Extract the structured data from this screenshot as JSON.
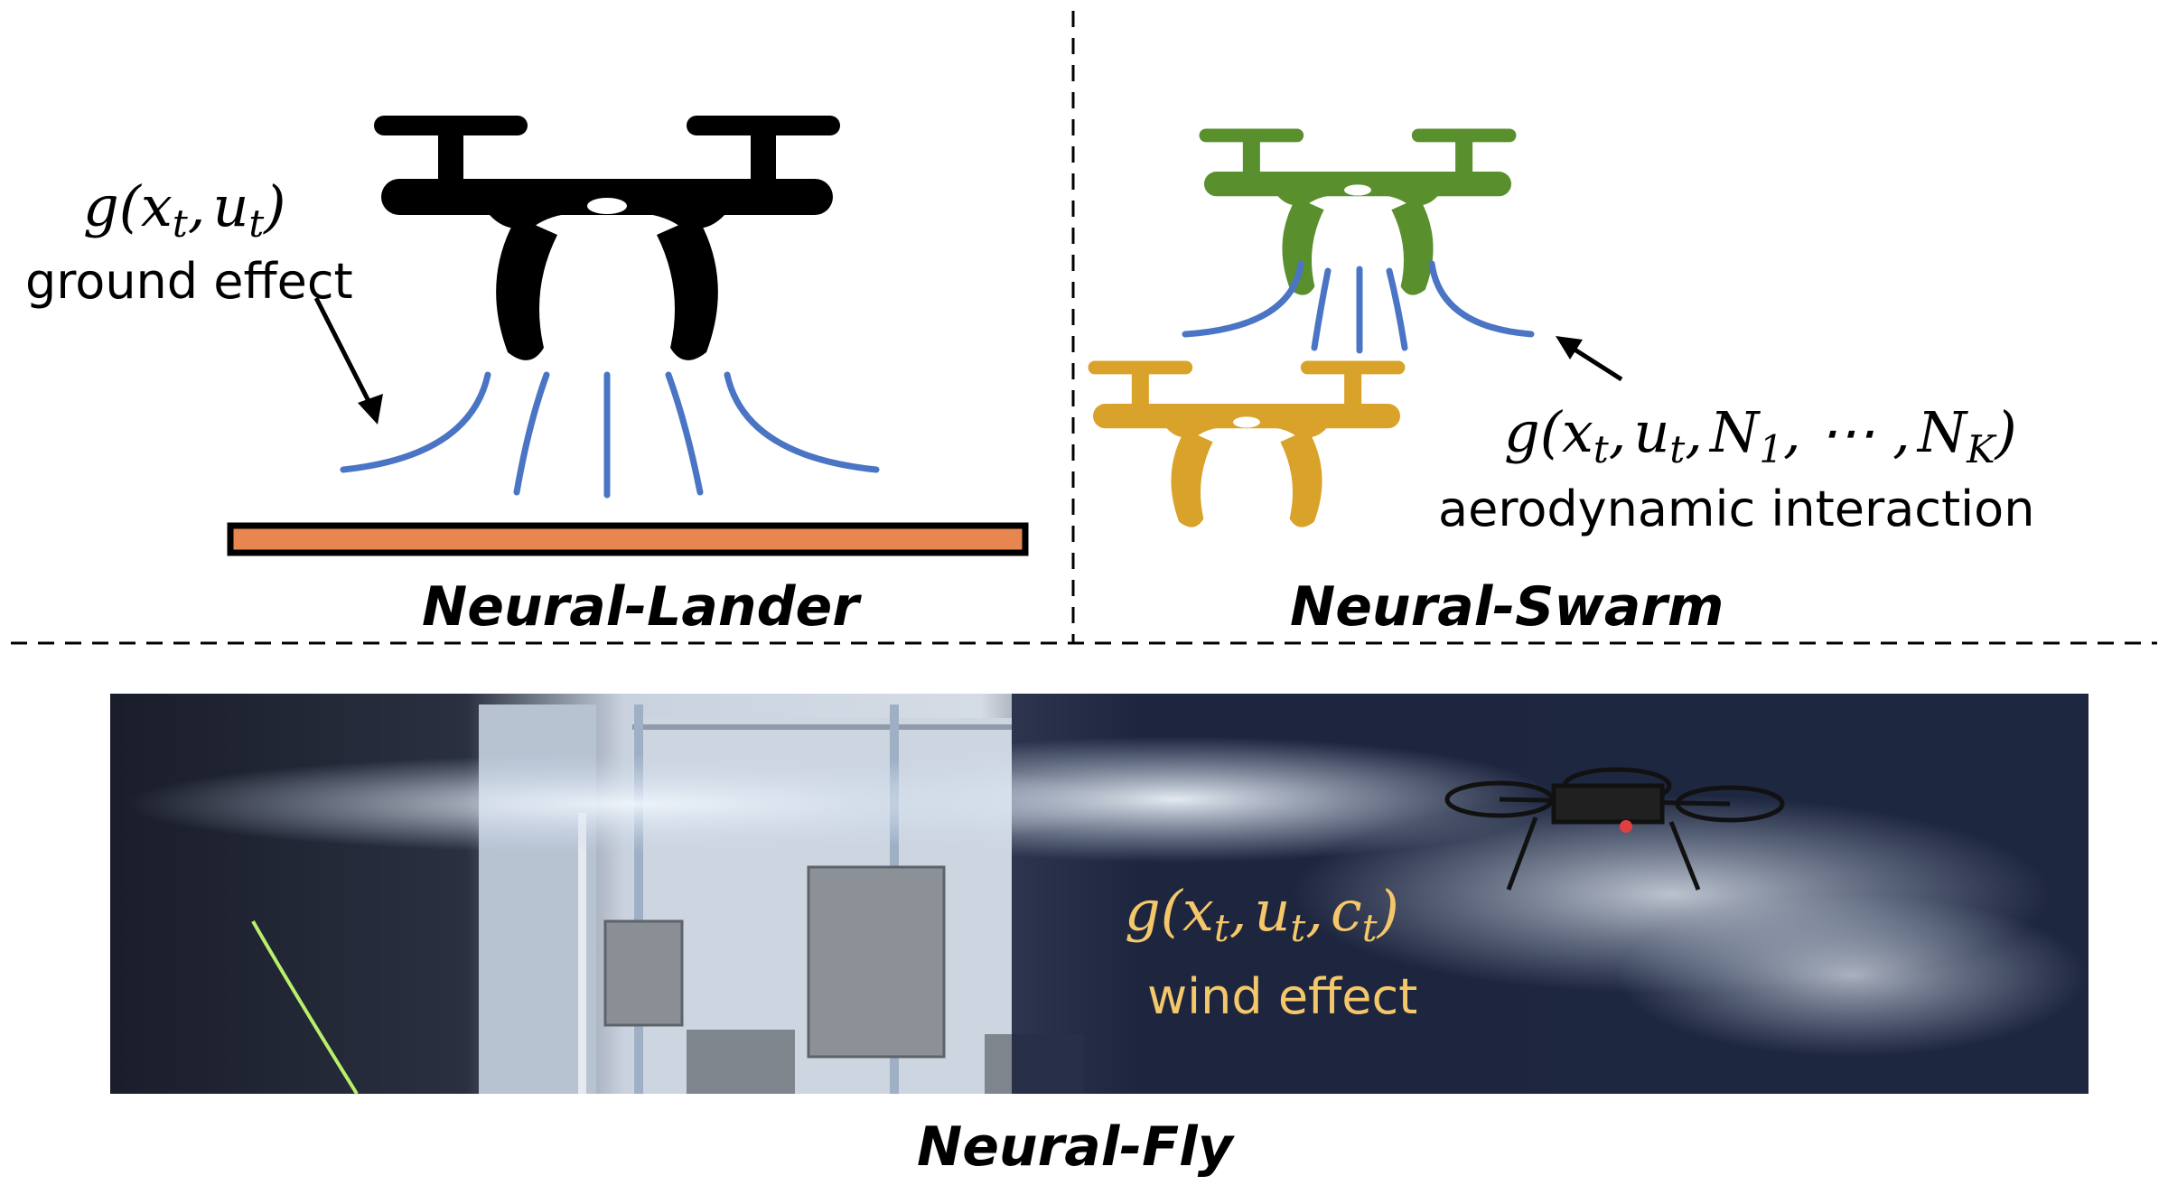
{
  "panels": {
    "lander": {
      "title": "Neural-Lander",
      "formula_g": "g(",
      "formula_x": "x",
      "formula_xsub": "t",
      "formula_sep": ",",
      "formula_u": "u",
      "formula_usub": "t",
      "formula_close": ")",
      "label": "ground effect"
    },
    "swarm": {
      "title": "Neural-Swarm",
      "formula_g": "g(",
      "formula_x": "x",
      "formula_xsub": "t",
      "formula_sep1": ",",
      "formula_u": "u",
      "formula_usub": "t",
      "formula_sep2": ",",
      "formula_n1": "N",
      "formula_n1sub": "1",
      "formula_dots": ", ⋯ ,",
      "formula_nk": "N",
      "formula_nksub": "K",
      "formula_close": ")",
      "label": "aerodynamic interaction"
    },
    "fly": {
      "title": "Neural-Fly",
      "formula_g": "g(",
      "formula_x": "x",
      "formula_xsub": "t",
      "formula_sep1": ",",
      "formula_u": "u",
      "formula_usub": "t",
      "formula_sep2": ",",
      "formula_c": "c",
      "formula_csub": "t",
      "formula_close": ")",
      "label": "wind effect"
    }
  },
  "colors": {
    "airflow": "#4a74c4",
    "ground_plate": "#e8864f",
    "drone_lander": "#000000",
    "drone_swarm_top": "#5a8f2e",
    "drone_swarm_bottom": "#d9a22a",
    "wind_text": "#f4c76a"
  }
}
